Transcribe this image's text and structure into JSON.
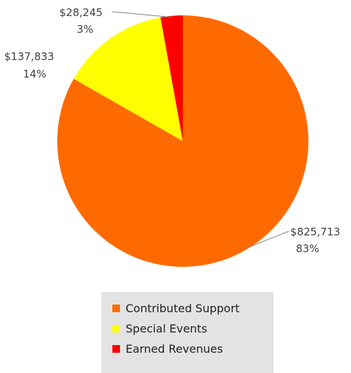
{
  "chart_data": {
    "type": "pie",
    "title": "",
    "slices": [
      {
        "name": "Contributed Support",
        "value": 825713,
        "value_label": "$825,713",
        "percent_label": "83%",
        "color": "#ff6a00"
      },
      {
        "name": "Special Events",
        "value": 137833,
        "value_label": "$137,833",
        "percent_label": "14%",
        "color": "#ffff00"
      },
      {
        "name": "Earned Revenues",
        "value": 28245,
        "value_label": "$28,245",
        "percent_label": "3%",
        "color": "#ff0000"
      }
    ],
    "legend_position": "bottom",
    "start_angle": "12 o'clock",
    "direction": "clockwise"
  }
}
